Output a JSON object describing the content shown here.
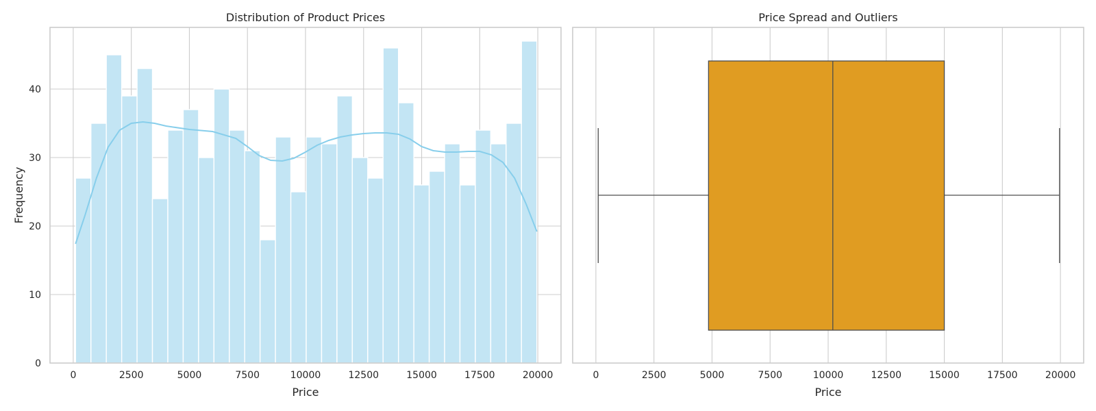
{
  "chart_data": [
    {
      "type": "histogram",
      "title": "Distribution of Product Prices",
      "xlabel": "Price",
      "ylabel": "Frequency",
      "xlim": [
        -1000,
        21000
      ],
      "ylim": [
        0,
        49
      ],
      "xticks": [
        0,
        2500,
        5000,
        7500,
        10000,
        12500,
        15000,
        17500,
        20000
      ],
      "yticks": [
        0,
        10,
        20,
        30,
        40
      ],
      "bin_start": 100,
      "bin_end": 19960,
      "counts": [
        27,
        35,
        45,
        39,
        43,
        24,
        34,
        37,
        30,
        40,
        34,
        31,
        18,
        33,
        25,
        33,
        32,
        39,
        30,
        27,
        46,
        38,
        26,
        28,
        32,
        26,
        34,
        32,
        35,
        47
      ],
      "kde": {
        "x": [
          100,
          500,
          1000,
          1500,
          2000,
          2500,
          3000,
          3500,
          4000,
          5000,
          6000,
          7000,
          7500,
          8000,
          8500,
          9000,
          9500,
          10000,
          10500,
          11000,
          11500,
          12000,
          12500,
          13000,
          13500,
          14000,
          14500,
          15000,
          15500,
          16000,
          16500,
          17000,
          17500,
          18000,
          18500,
          19000,
          19500,
          19960
        ],
        "y": [
          17.4,
          21.5,
          27.0,
          31.5,
          34.0,
          35.0,
          35.2,
          35.0,
          34.6,
          34.1,
          33.8,
          32.8,
          31.6,
          30.3,
          29.6,
          29.5,
          29.9,
          30.8,
          31.8,
          32.5,
          33.0,
          33.3,
          33.5,
          33.6,
          33.6,
          33.4,
          32.7,
          31.6,
          31.0,
          30.8,
          30.8,
          30.9,
          30.9,
          30.4,
          29.3,
          27.0,
          23.2,
          19.2
        ]
      },
      "bar_color": "#c3e5f4",
      "line_color": "#87ceeb",
      "grid": true
    },
    {
      "type": "box",
      "title": "Price Spread and Outliers",
      "xlabel": "Price",
      "xlim": [
        -1000,
        21000
      ],
      "xticks": [
        0,
        2500,
        5000,
        7500,
        10000,
        12500,
        15000,
        17500,
        20000
      ],
      "whisker_low": 100,
      "q1": 4850,
      "median": 10200,
      "q3": 15000,
      "whisker_high": 19960,
      "box_color": "#e09c22",
      "grid": true
    }
  ]
}
